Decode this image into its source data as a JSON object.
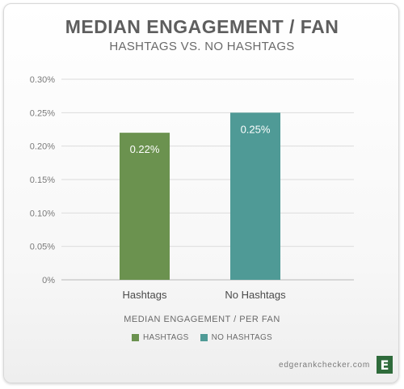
{
  "chart_data": {
    "type": "bar",
    "title": "MEDIAN ENGAGEMENT / FAN",
    "subtitle": "HASHTAGS VS. NO HASHTAGS",
    "xlabel": "MEDIAN ENGAGEMENT / PER FAN",
    "ylabel": "",
    "categories": [
      "Hashtags",
      "No Hashtags"
    ],
    "values": [
      0.22,
      0.25
    ],
    "value_labels": [
      "0.22%",
      "0.25%"
    ],
    "units": "%",
    "ylim": [
      0,
      0.3
    ],
    "yticks": [
      0,
      0.05,
      0.1,
      0.15,
      0.2,
      0.25,
      0.3
    ],
    "ytick_labels": [
      "0%",
      "0.05%",
      "0.10%",
      "0.15%",
      "0.20%",
      "0.25%",
      "0.30%"
    ],
    "grid": true,
    "legend": {
      "placement": "bottom-center",
      "entries": [
        {
          "label": "HASHTAGS",
          "color": "#6b924f"
        },
        {
          "label": "NO HASHTAGS",
          "color": "#4f9a96"
        }
      ]
    },
    "colors": [
      "#6b924f",
      "#4f9a96"
    ]
  },
  "branding": {
    "site": "edgerankchecker.com",
    "logo_letter": "E"
  }
}
